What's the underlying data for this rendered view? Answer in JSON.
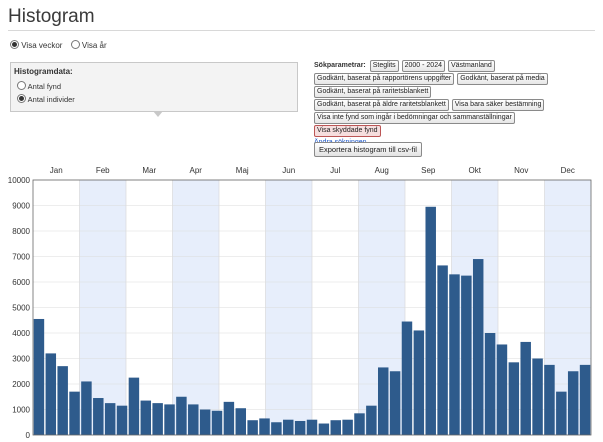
{
  "title": "Histogram",
  "view_mode": {
    "weeks": "Visa veckor",
    "years": "Visa år",
    "selected": "weeks"
  },
  "data_panel": {
    "heading": "Histogramdata:",
    "options": [
      "Antal fynd",
      "Antal individer"
    ],
    "selected": 1
  },
  "search_params": {
    "label": "Sökparametrar:",
    "row1": [
      "Steglits",
      "2000 - 2024",
      "Västmanland"
    ],
    "row2": [
      "Godkänt, baserat på rapportörens uppgifter",
      "Godkänt, baserat på media"
    ],
    "row3": [
      "Godkänt, baserat på raritetsblankett"
    ],
    "row4": [
      "Godkänt, baserat på äldre raritetsblankett",
      "Visa bara säker bestämning"
    ],
    "row5": [
      "Visa inte fynd som ingår i bedömningar och sammanställningar"
    ],
    "row6": [
      "Visa skyddade fynd"
    ],
    "change_link": "Ändra sökningen"
  },
  "export_button": "Exportera histogram till csv-fil",
  "chart_data": {
    "type": "bar",
    "months": [
      "Jan",
      "Feb",
      "Mar",
      "Apr",
      "Maj",
      "Jun",
      "Jul",
      "Aug",
      "Sep",
      "Okt",
      "Nov",
      "Dec"
    ],
    "values": [
      4550,
      3200,
      2700,
      1700,
      2100,
      1450,
      1250,
      1150,
      2250,
      1350,
      1250,
      1200,
      1500,
      1200,
      1000,
      950,
      1300,
      1050,
      580,
      650,
      500,
      600,
      550,
      600,
      450,
      580,
      600,
      850,
      1150,
      2650,
      2500,
      4450,
      4100,
      8950,
      6650,
      6300,
      6250,
      6900,
      4000,
      3550,
      2850,
      3650,
      3000,
      2750,
      1700,
      2500,
      2750
    ],
    "ylim": [
      0,
      10000
    ],
    "yticks": [
      0,
      1000,
      2000,
      3000,
      4000,
      5000,
      6000,
      7000,
      8000,
      9000,
      10000
    ],
    "bar_color": "#2e5b8c",
    "band_color": "#e7eefb"
  }
}
